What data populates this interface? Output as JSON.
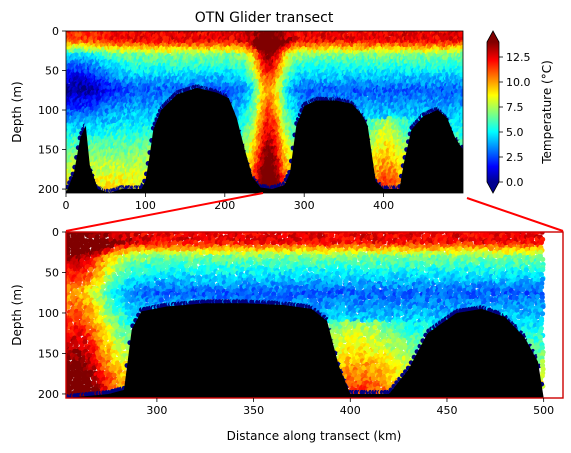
{
  "figure": {
    "title": "OTN Glider transect"
  },
  "colorbar": {
    "label": "Temperature (°C)",
    "range": [
      0,
      14
    ],
    "ticks": [
      "0.0",
      "2.5",
      "5.0",
      "7.5",
      "10.0",
      "12.5"
    ],
    "tick_values": [
      0,
      2.5,
      5,
      7.5,
      10,
      12.5
    ],
    "colormap": "jet",
    "extend": "both"
  },
  "zoom_box": {
    "x_range_km": [
      253,
      510
    ],
    "color": "#ff0000"
  },
  "chart_data": [
    {
      "type": "heatmap",
      "title": "OTN Glider transect",
      "xlabel": "",
      "ylabel": "Depth (m)",
      "xlim": [
        0,
        500
      ],
      "ylim": [
        205,
        0
      ],
      "xticks": [
        "0",
        "100",
        "200",
        "300",
        "400"
      ],
      "xtick_values": [
        0,
        100,
        200,
        300,
        400
      ],
      "yticks": [
        "0",
        "50",
        "100",
        "150",
        "200"
      ],
      "ytick_values": [
        0,
        50,
        100,
        150,
        200
      ],
      "variable": "Temperature (°C)",
      "seafloor_depth_profile": [
        {
          "x": 0,
          "depth": 205
        },
        {
          "x": 10,
          "depth": 180
        },
        {
          "x": 18,
          "depth": 135
        },
        {
          "x": 25,
          "depth": 120
        },
        {
          "x": 30,
          "depth": 170
        },
        {
          "x": 40,
          "depth": 200
        },
        {
          "x": 55,
          "depth": 205
        },
        {
          "x": 70,
          "depth": 200
        },
        {
          "x": 95,
          "depth": 200
        },
        {
          "x": 100,
          "depth": 190
        },
        {
          "x": 105,
          "depth": 160
        },
        {
          "x": 110,
          "depth": 125
        },
        {
          "x": 120,
          "depth": 100
        },
        {
          "x": 140,
          "depth": 80
        },
        {
          "x": 165,
          "depth": 72
        },
        {
          "x": 190,
          "depth": 78
        },
        {
          "x": 205,
          "depth": 85
        },
        {
          "x": 215,
          "depth": 110
        },
        {
          "x": 225,
          "depth": 150
        },
        {
          "x": 235,
          "depth": 185
        },
        {
          "x": 245,
          "depth": 198
        },
        {
          "x": 260,
          "depth": 200
        },
        {
          "x": 275,
          "depth": 195
        },
        {
          "x": 282,
          "depth": 180
        },
        {
          "x": 290,
          "depth": 120
        },
        {
          "x": 300,
          "depth": 95
        },
        {
          "x": 315,
          "depth": 88
        },
        {
          "x": 340,
          "depth": 88
        },
        {
          "x": 360,
          "depth": 92
        },
        {
          "x": 372,
          "depth": 105
        },
        {
          "x": 380,
          "depth": 120
        },
        {
          "x": 390,
          "depth": 190
        },
        {
          "x": 400,
          "depth": 200
        },
        {
          "x": 420,
          "depth": 200
        },
        {
          "x": 425,
          "depth": 170
        },
        {
          "x": 435,
          "depth": 125
        },
        {
          "x": 450,
          "depth": 108
        },
        {
          "x": 468,
          "depth": 100
        },
        {
          "x": 480,
          "depth": 110
        },
        {
          "x": 490,
          "depth": 135
        },
        {
          "x": 500,
          "depth": 150
        }
      ]
    },
    {
      "type": "heatmap",
      "title": "",
      "xlabel": "Distance along transect (km)",
      "ylabel": "Depth (m)",
      "xlim": [
        253,
        510
      ],
      "ylim": [
        205,
        0
      ],
      "xticks": [
        "300",
        "350",
        "400",
        "450",
        "500"
      ],
      "xtick_values": [
        300,
        350,
        400,
        450,
        500
      ],
      "yticks": [
        "0",
        "50",
        "100",
        "150",
        "200"
      ],
      "ytick_values": [
        0,
        50,
        100,
        150,
        200
      ],
      "variable": "Temperature (°C)",
      "seafloor_depth_profile": [
        {
          "x": 253,
          "depth": 205
        },
        {
          "x": 275,
          "depth": 200
        },
        {
          "x": 283,
          "depth": 195
        },
        {
          "x": 287,
          "depth": 120
        },
        {
          "x": 292,
          "depth": 98
        },
        {
          "x": 305,
          "depth": 92
        },
        {
          "x": 325,
          "depth": 88
        },
        {
          "x": 345,
          "depth": 88
        },
        {
          "x": 365,
          "depth": 90
        },
        {
          "x": 380,
          "depth": 95
        },
        {
          "x": 388,
          "depth": 110
        },
        {
          "x": 394,
          "depth": 165
        },
        {
          "x": 400,
          "depth": 200
        },
        {
          "x": 420,
          "depth": 200
        },
        {
          "x": 430,
          "depth": 170
        },
        {
          "x": 440,
          "depth": 125
        },
        {
          "x": 455,
          "depth": 100
        },
        {
          "x": 468,
          "depth": 95
        },
        {
          "x": 480,
          "depth": 105
        },
        {
          "x": 490,
          "depth": 130
        },
        {
          "x": 497,
          "depth": 160
        },
        {
          "x": 500,
          "depth": 205
        }
      ]
    }
  ]
}
